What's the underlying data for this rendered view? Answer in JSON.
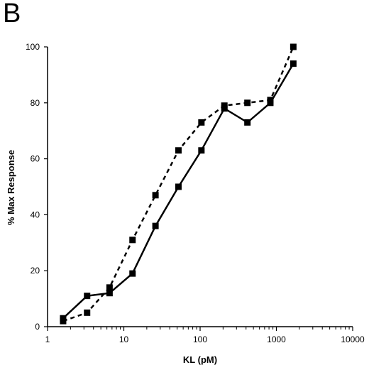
{
  "panel_label": "B",
  "chart_data": {
    "type": "line",
    "xlabel": "KL (pM)",
    "ylabel": "% Max Response",
    "xscale": "log",
    "xlim": [
      1,
      10000
    ],
    "ylim": [
      0,
      100
    ],
    "xticks": [
      1,
      10,
      100,
      1000,
      10000
    ],
    "xtick_labels": [
      "1",
      "10",
      "100",
      "1000",
      "10000"
    ],
    "yticks": [
      0,
      20,
      40,
      60,
      80,
      100
    ],
    "ytick_labels": [
      "0",
      "20",
      "40",
      "60",
      "80",
      "100"
    ],
    "grid": false,
    "legend": "none",
    "series": [
      {
        "style": "solid",
        "color": "#000000",
        "marker": "square",
        "x": [
          1.6,
          3.3,
          6.5,
          13,
          26,
          52,
          104,
          208,
          417,
          833,
          1667
        ],
        "y": [
          3,
          11,
          12,
          19,
          36,
          50,
          63,
          78,
          73,
          80,
          94
        ]
      },
      {
        "style": "dashed",
        "color": "#000000",
        "marker": "square",
        "x": [
          1.6,
          3.3,
          6.5,
          13,
          26,
          52,
          104,
          208,
          417,
          833,
          1667
        ],
        "y": [
          2,
          5,
          14,
          31,
          47,
          63,
          73,
          79,
          80,
          81,
          100
        ]
      }
    ]
  }
}
